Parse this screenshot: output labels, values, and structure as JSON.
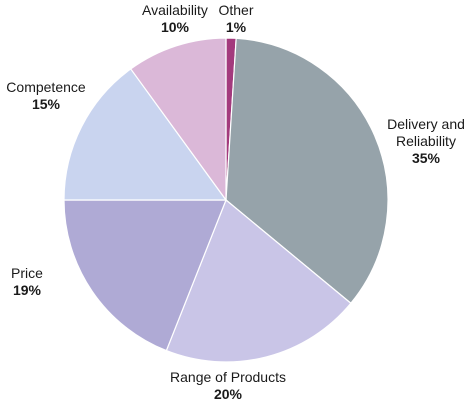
{
  "chart_data": {
    "type": "pie",
    "title": "",
    "slices": [
      {
        "label_lines": [
          "Other"
        ],
        "value": 1,
        "value_label": "1%",
        "color": "#a33a7d"
      },
      {
        "label_lines": [
          "Delivery and",
          "Reliability"
        ],
        "value": 35,
        "value_label": "35%",
        "color": "#96a3aa"
      },
      {
        "label_lines": [
          "Range of Products"
        ],
        "value": 20,
        "value_label": "20%",
        "color": "#c9c5e7"
      },
      {
        "label_lines": [
          "Price"
        ],
        "value": 19,
        "value_label": "19%",
        "color": "#afaad5"
      },
      {
        "label_lines": [
          "Competence"
        ],
        "value": 15,
        "value_label": "15%",
        "color": "#c9d4ef"
      },
      {
        "label_lines": [
          "Availability"
        ],
        "value": 10,
        "value_label": "10%",
        "color": "#dbb8d8"
      }
    ]
  }
}
